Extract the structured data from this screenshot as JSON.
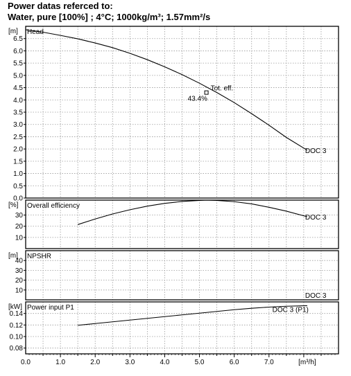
{
  "header": {
    "line1": "Power datas referced to:",
    "line2": "Water, pure [100%] ; 4°C; 1000kg/m³; 1.57mm²/s"
  },
  "chart_data": [
    {
      "type": "line",
      "id": "head",
      "title": "Head",
      "unit": "[m]",
      "ylim": [
        0,
        7.0
      ],
      "yticks": [
        0.0,
        0.5,
        1.0,
        1.5,
        2.0,
        2.5,
        3.0,
        3.5,
        4.0,
        4.5,
        5.0,
        5.5,
        6.0,
        6.5
      ],
      "ytick_labels": [
        "0.0",
        "0.5",
        "1.0",
        "1.5",
        "2.0",
        "2.5",
        "3.0",
        "3.5",
        "4.0",
        "4.5",
        "5.0",
        "5.5",
        "6.0",
        "6.5"
      ],
      "grid": true,
      "series": [
        {
          "name": "DOC 3",
          "x": [
            0,
            0.5,
            1.0,
            1.5,
            2.0,
            2.5,
            3.0,
            3.5,
            4.0,
            4.5,
            5.0,
            5.5,
            6.0,
            6.5,
            7.0,
            7.5,
            8.1
          ],
          "y": [
            6.86,
            6.76,
            6.63,
            6.49,
            6.32,
            6.13,
            5.9,
            5.64,
            5.35,
            5.03,
            4.68,
            4.3,
            3.89,
            3.44,
            2.97,
            2.47,
            1.95
          ]
        }
      ],
      "annotations": [
        {
          "text": "Tot. eff.",
          "x": 5.2,
          "y": 4.3,
          "marker": "square"
        },
        {
          "text": "43.4%",
          "x": 5.2,
          "y": 4.3
        }
      ]
    },
    {
      "type": "line",
      "id": "efficiency",
      "title": "Overall efficiency",
      "unit": "[%]",
      "ylim": [
        0,
        43.4
      ],
      "yticks": [
        10,
        20,
        30
      ],
      "ytick_labels": [
        "10",
        "20",
        "30"
      ],
      "grid": true,
      "series": [
        {
          "name": "DOC 3",
          "x": [
            1.5,
            2.0,
            2.5,
            3.0,
            3.5,
            4.0,
            4.5,
            5.0,
            5.2,
            5.5,
            6.0,
            6.5,
            7.0,
            7.5,
            8.1
          ],
          "y": [
            21.5,
            26.5,
            31.0,
            34.8,
            38.0,
            40.5,
            42.2,
            43.1,
            43.4,
            43.1,
            42.0,
            40.0,
            37.0,
            33.5,
            28.5
          ]
        }
      ]
    },
    {
      "type": "line",
      "id": "npshr",
      "title": "NPSHR",
      "unit": "[m]",
      "ylim": [
        0,
        50
      ],
      "yticks": [
        10,
        20,
        30,
        40
      ],
      "ytick_labels": [
        "10",
        "20",
        "30",
        "40"
      ],
      "grid": true,
      "series": [
        {
          "name": "DOC 3",
          "x": [],
          "y": []
        }
      ]
    },
    {
      "type": "line",
      "id": "power",
      "title": "Power input P1",
      "unit": "[kW]",
      "ylim": [
        0.07,
        0.16
      ],
      "yticks": [
        0.08,
        0.1,
        0.12,
        0.14
      ],
      "ytick_labels": [
        "0.08",
        "0.10",
        "0.12",
        "0.14"
      ],
      "grid": true,
      "series": [
        {
          "name": "DOC 3 (P1)",
          "x": [
            1.5,
            2.0,
            2.5,
            3.0,
            3.5,
            4.0,
            4.5,
            5.0,
            5.5,
            6.0,
            6.5,
            7.0,
            7.5,
            8.1
          ],
          "y": [
            0.1195,
            0.1225,
            0.1255,
            0.1285,
            0.1315,
            0.1345,
            0.1375,
            0.1405,
            0.1435,
            0.1465,
            0.149,
            0.151,
            0.1525,
            0.1535
          ]
        }
      ]
    }
  ],
  "x_axis": {
    "unit": "[m³/h]",
    "xlim": [
      0,
      9.0
    ],
    "ticks": [
      0.0,
      1.0,
      2.0,
      3.0,
      4.0,
      5.0,
      6.0,
      7.0
    ],
    "tick_labels": [
      "0.0",
      "1.0",
      "2.0",
      "3.0",
      "4.0",
      "5.0",
      "6.0",
      "7.0"
    ]
  },
  "colors": {
    "curve": "#000000",
    "grid": "#9a9a9a",
    "frame": "#000000"
  }
}
